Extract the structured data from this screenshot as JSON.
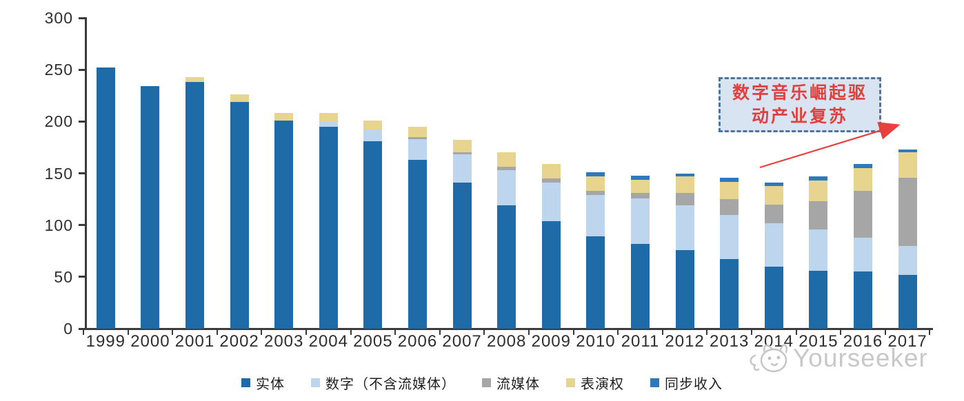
{
  "chart_data": {
    "type": "bar",
    "stacked": true,
    "title": "",
    "categories": [
      "1999",
      "2000",
      "2001",
      "2002",
      "2003",
      "2004",
      "2005",
      "2006",
      "2007",
      "2008",
      "2009",
      "2010",
      "2011",
      "2012",
      "2013",
      "2014",
      "2015",
      "2016",
      "2017"
    ],
    "series": [
      {
        "id": "physical",
        "name": "实体",
        "color": "#1F6BA8",
        "values": [
          252,
          234,
          238,
          219,
          201,
          195,
          181,
          163,
          141,
          119,
          104,
          89,
          82,
          76,
          67,
          60,
          56,
          55,
          52
        ]
      },
      {
        "id": "digital-excl-streaming",
        "name": "数字（不含流媒体）",
        "color": "#BDD6EE",
        "values": [
          0,
          0,
          0,
          0,
          0,
          5,
          11,
          20,
          27,
          34,
          37,
          40,
          44,
          43,
          43,
          42,
          40,
          33,
          28
        ]
      },
      {
        "id": "streaming",
        "name": "流媒体",
        "color": "#A6A6A6",
        "values": [
          0,
          0,
          0,
          0,
          0,
          0,
          0,
          2,
          2,
          3,
          4,
          4,
          5,
          12,
          15,
          18,
          27,
          45,
          66
        ]
      },
      {
        "id": "performance-rights",
        "name": "表演权",
        "color": "#E7D48F",
        "values": [
          0,
          0,
          5,
          7,
          7,
          8,
          9,
          10,
          12,
          14,
          14,
          14,
          13,
          16,
          17,
          18,
          20,
          22,
          24
        ]
      },
      {
        "id": "sync-revenue",
        "name": "同步收入",
        "color": "#2E79BE",
        "values": [
          0,
          0,
          0,
          0,
          0,
          0,
          0,
          0,
          0,
          0,
          0,
          4,
          4,
          3,
          4,
          3,
          4,
          4,
          3
        ]
      }
    ],
    "ylim": [
      0,
      300
    ],
    "yticks": [
      0,
      50,
      100,
      150,
      200,
      250,
      300
    ],
    "xlabel": "",
    "ylabel": "",
    "grid": false,
    "legend_position": "bottom"
  },
  "annotation": {
    "text_line1": "数字音乐崛起驱",
    "text_line2": "动产业复苏",
    "box_fill": "#D8E4F1",
    "box_border": "#4F729A",
    "text_color": "#E0413E",
    "arrow_color": "#E8403C"
  },
  "watermark": {
    "text": "Yourseeker",
    "logo": "cat-face-logo-icon",
    "color": "#C8C8C8"
  }
}
